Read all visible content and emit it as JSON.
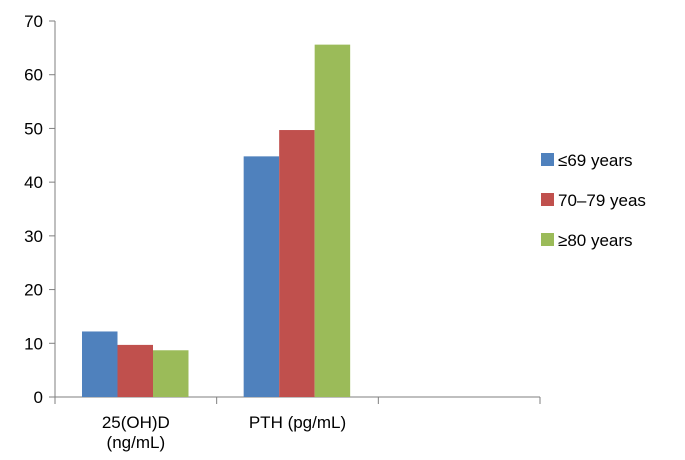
{
  "chart_data": {
    "type": "bar",
    "title": "",
    "xlabel": "",
    "ylabel": "",
    "ylim": [
      0,
      70
    ],
    "yticks": [
      0,
      10,
      20,
      30,
      40,
      50,
      60,
      70
    ],
    "grid": false,
    "legend_position": "right",
    "categories": [
      [
        "25(OH)D",
        "(ng/mL)"
      ],
      [
        "PTH (pg/mL)"
      ],
      [
        ""
      ]
    ],
    "series": [
      {
        "name": "≤69 years",
        "color": "#4f81bd",
        "values": [
          12.2,
          44.8,
          null
        ]
      },
      {
        "name": "70–79 yeas",
        "color": "#c0504d",
        "values": [
          9.7,
          49.7,
          null
        ]
      },
      {
        "name": "≥80 years",
        "color": "#9bbb59",
        "values": [
          8.7,
          65.6,
          null
        ]
      }
    ]
  }
}
